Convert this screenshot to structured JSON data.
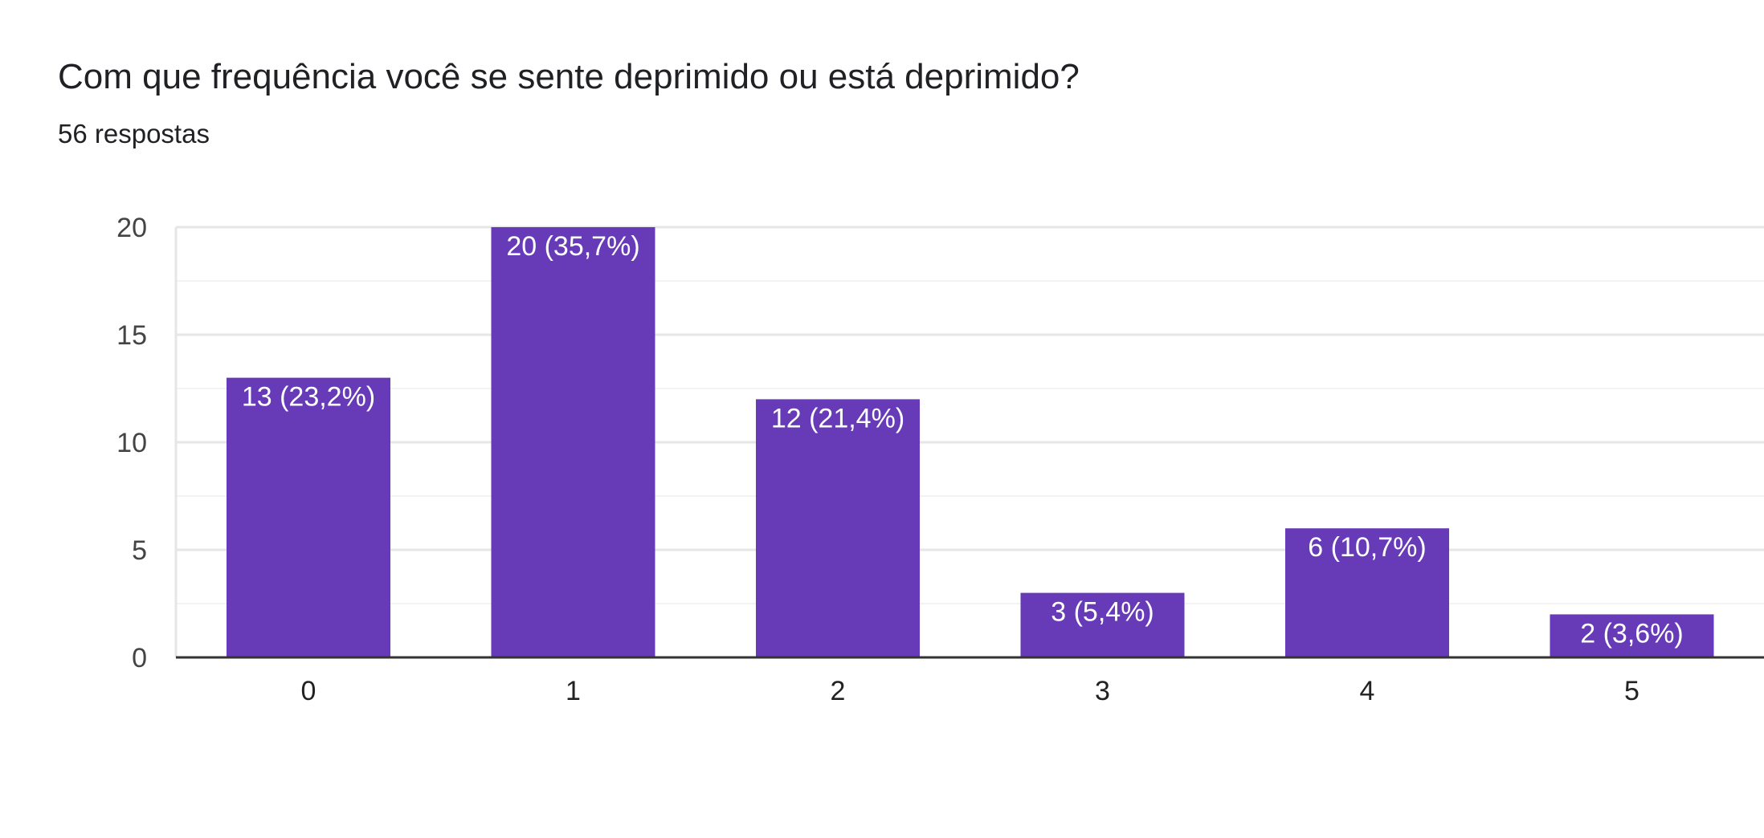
{
  "title": "Com que frequência você se sente deprimido ou está deprimido?",
  "subtitle": "56 respostas",
  "colors": {
    "bar": "#673ab7",
    "grid_major": "#e6e6e6",
    "grid_minor": "#f3f3f3",
    "axis": "#333333"
  },
  "chart_data": {
    "type": "bar",
    "title": "Com que frequência você se sente deprimido ou está deprimido?",
    "subtitle": "56 respostas",
    "categories": [
      "0",
      "1",
      "2",
      "3",
      "4",
      "5"
    ],
    "values": [
      13,
      20,
      12,
      3,
      6,
      2
    ],
    "data_labels": [
      "13 (23,2%)",
      "20 (35,7%)",
      "12 (21,4%)",
      "3 (5,4%)",
      "6 (10,7%)",
      "2 (3,6%)"
    ],
    "y_ticks": [
      0,
      5,
      10,
      15,
      20
    ],
    "ylim": [
      0,
      20
    ],
    "xlabel": "",
    "ylabel": "",
    "grid": true,
    "legend": "none"
  }
}
